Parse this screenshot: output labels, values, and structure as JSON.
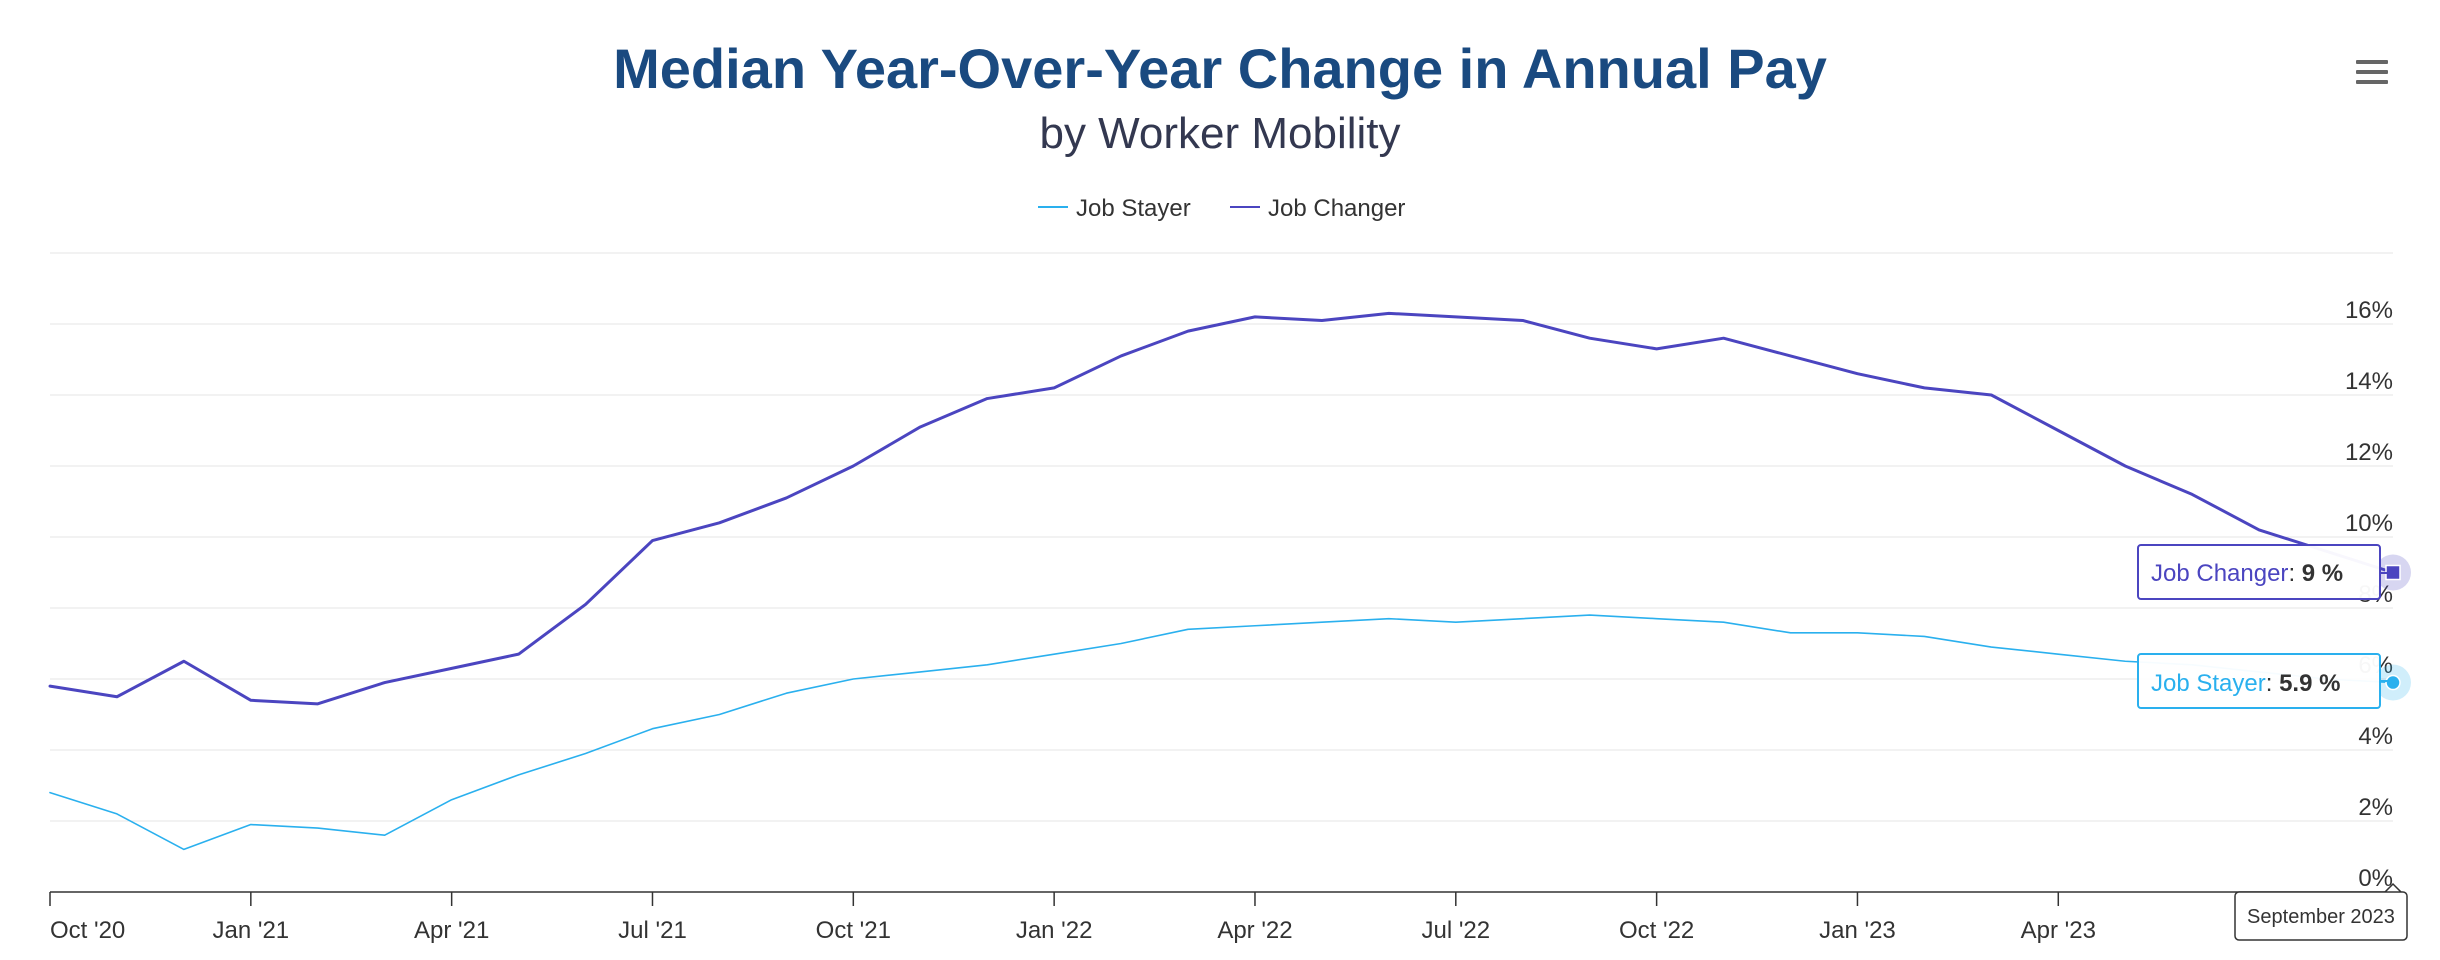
{
  "title": "Median Year-Over-Year Change in Annual Pay",
  "subtitle": "by Worker Mobility",
  "colors": {
    "title": "#1a4a80",
    "subtitle": "#333850",
    "job_stayer": "#2ab0ee",
    "job_changer": "#4b45c0",
    "grid": "#e6e6e6",
    "axis": "#333333"
  },
  "menu_icon": "hamburger-menu-icon",
  "legend": {
    "position": "top-center",
    "items": [
      "Job Stayer",
      "Job Changer"
    ]
  },
  "tooltips": [
    {
      "series": "Job Changer",
      "value": "9 %"
    },
    {
      "series": "Job Stayer",
      "value": "5.9 %"
    }
  ],
  "crosshair_label": "September 2023",
  "chart_data": {
    "type": "line",
    "x": [
      "2020-10",
      "2020-11",
      "2020-12",
      "2021-01",
      "2021-02",
      "2021-03",
      "2021-04",
      "2021-05",
      "2021-06",
      "2021-07",
      "2021-08",
      "2021-09",
      "2021-10",
      "2021-11",
      "2021-12",
      "2022-01",
      "2022-02",
      "2022-03",
      "2022-04",
      "2022-05",
      "2022-06",
      "2022-07",
      "2022-08",
      "2022-09",
      "2022-10",
      "2022-11",
      "2022-12",
      "2023-01",
      "2023-02",
      "2023-03",
      "2023-04",
      "2023-05",
      "2023-06",
      "2023-07",
      "2023-08",
      "2023-09"
    ],
    "x_tick_labels": [
      "Oct '20",
      "Jan '21",
      "Apr '21",
      "Jul '21",
      "Oct '21",
      "Jan '22",
      "Apr '22",
      "Jul '22",
      "Oct '22",
      "Jan '23",
      "Apr '23",
      "J"
    ],
    "y_tick_labels": [
      "0%",
      "2%",
      "4%",
      "6%",
      "8%",
      "10%",
      "12%",
      "14%",
      "16%"
    ],
    "ylim": [
      0,
      18
    ],
    "y_ticks": [
      0,
      2,
      4,
      6,
      8,
      10,
      12,
      14,
      16
    ],
    "y_axis_side": "right",
    "grid": true,
    "series": [
      {
        "name": "Job Stayer",
        "values": [
          2.8,
          2.2,
          1.2,
          1.9,
          1.8,
          1.6,
          2.6,
          3.3,
          3.9,
          4.6,
          5.0,
          5.6,
          6.0,
          6.2,
          6.4,
          6.7,
          7.0,
          7.4,
          7.5,
          7.6,
          7.7,
          7.6,
          7.7,
          7.8,
          7.7,
          7.6,
          7.3,
          7.3,
          7.2,
          6.9,
          6.7,
          6.5,
          6.4,
          6.2,
          6.0,
          5.9
        ]
      },
      {
        "name": "Job Changer",
        "values": [
          5.8,
          5.5,
          6.5,
          5.4,
          5.3,
          5.9,
          6.3,
          6.7,
          8.1,
          9.9,
          10.4,
          11.1,
          12.0,
          13.1,
          13.9,
          14.2,
          15.1,
          15.8,
          16.2,
          16.1,
          16.3,
          16.2,
          16.1,
          15.6,
          15.3,
          15.6,
          15.1,
          14.6,
          14.2,
          14.0,
          13.0,
          12.0,
          11.2,
          10.2,
          9.6,
          9.0
        ]
      }
    ]
  }
}
